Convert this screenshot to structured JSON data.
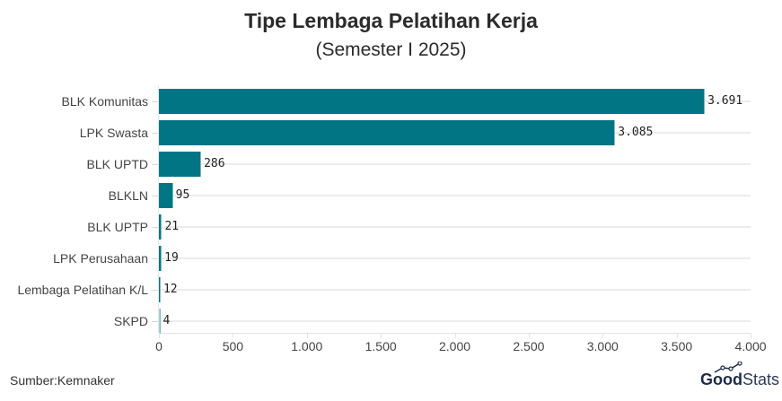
{
  "header": {
    "title": "Tipe Lembaga Pelatihan Kerja",
    "subtitle": "(Semester I 2025)"
  },
  "footer": {
    "source": "Sumber:Kemnaker",
    "logo_bold": "Good",
    "logo_light": "Stats"
  },
  "colors": {
    "bar": "#027584",
    "grid": "#ececec",
    "text": "#333333"
  },
  "chart_data": {
    "type": "bar",
    "orientation": "horizontal",
    "title": "Tipe Lembaga Pelatihan Kerja",
    "subtitle": "(Semester I 2025)",
    "xlabel": "",
    "ylabel": "",
    "categories": [
      "BLK Komunitas",
      "LPK Swasta",
      "BLK UPTD",
      "BLKLN",
      "BLK UPTP",
      "LPK Perusahaan",
      "Lembaga Pelatihan K/L",
      "SKPD"
    ],
    "values": [
      3691,
      3085,
      286,
      95,
      21,
      19,
      12,
      4
    ],
    "value_labels": [
      "3.691",
      "3.085",
      "286",
      "95",
      "21",
      "19",
      "12",
      "4"
    ],
    "xlim": [
      0,
      4000
    ],
    "xticks": [
      0,
      500,
      1000,
      1500,
      2000,
      2500,
      3000,
      3500,
      4000
    ],
    "xtick_labels": [
      "0",
      "500",
      "1.000",
      "1.500",
      "2.000",
      "2.500",
      "3.000",
      "3.500",
      "4.000"
    ],
    "grid": true,
    "legend": null,
    "source": "Sumber:Kemnaker"
  }
}
